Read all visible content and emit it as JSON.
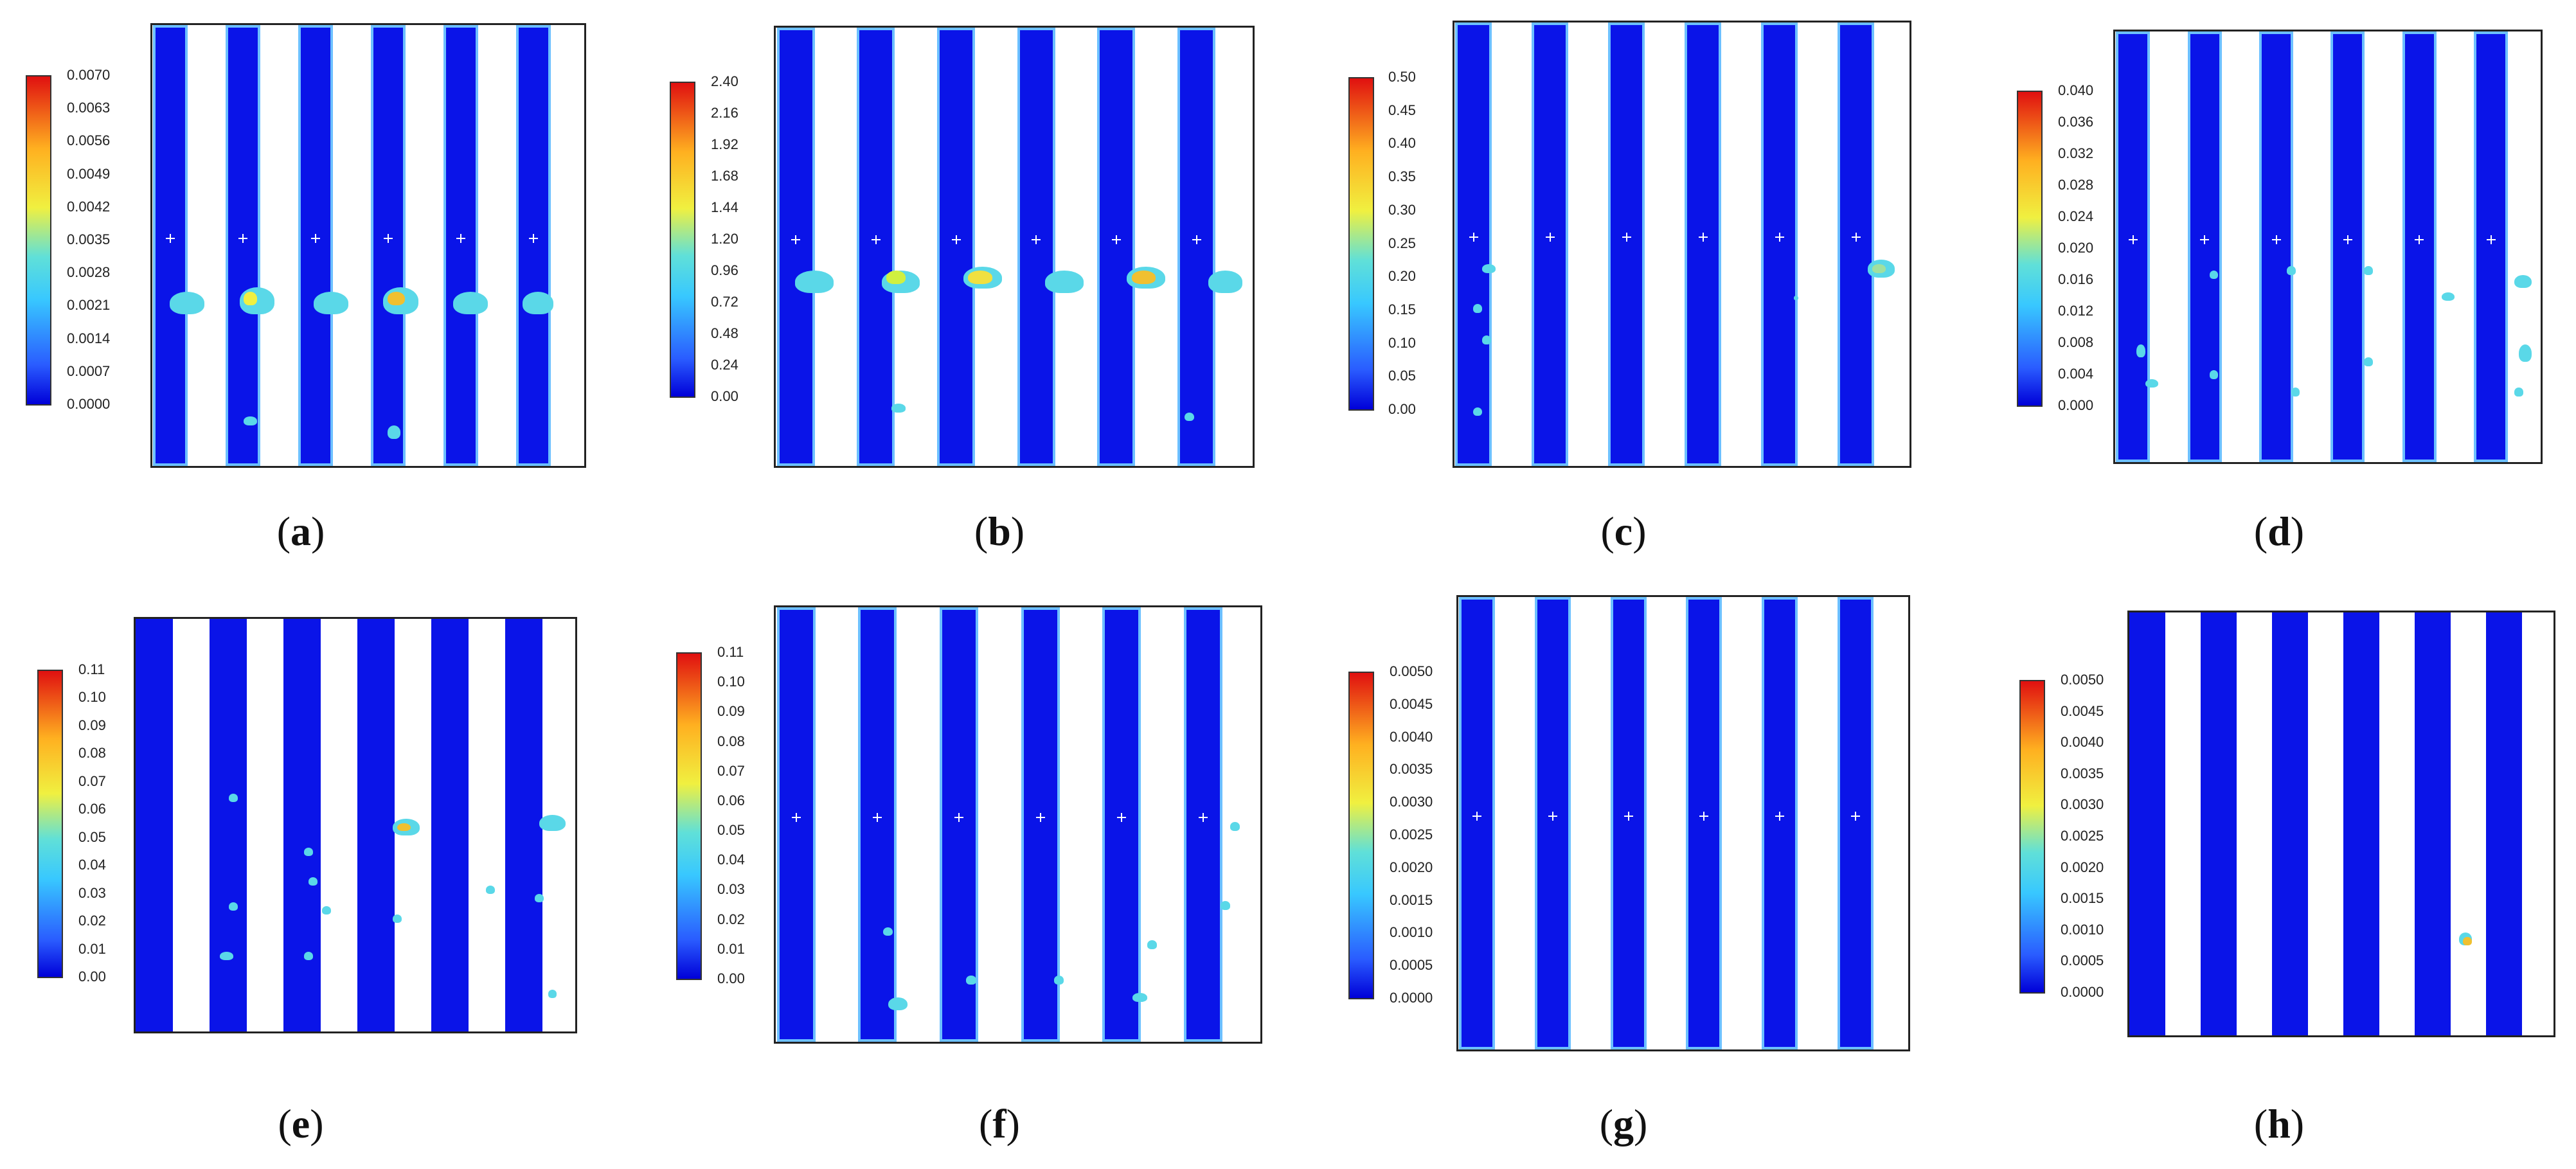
{
  "panels": [
    {
      "id": "a",
      "caption": "a",
      "colorbar_ticks": [
        "0.0070",
        "0.0063",
        "0.0056",
        "0.0049",
        "0.0042",
        "0.0035",
        "0.0028",
        "0.0021",
        "0.0014",
        "0.0007",
        "0.0000"
      ],
      "channel_count": 6,
      "channel_style": "bordered",
      "probe_marks": true
    },
    {
      "id": "b",
      "caption": "b",
      "colorbar_ticks": [
        "2.40",
        "2.16",
        "1.92",
        "1.68",
        "1.44",
        "1.20",
        "0.96",
        "0.72",
        "0.48",
        "0.24",
        "0.00"
      ],
      "channel_count": 6,
      "channel_style": "bordered",
      "probe_marks": true
    },
    {
      "id": "c",
      "caption": "c",
      "colorbar_ticks": [
        "0.50",
        "0.45",
        "0.40",
        "0.35",
        "0.30",
        "0.25",
        "0.20",
        "0.15",
        "0.10",
        "0.05",
        "0.00"
      ],
      "channel_count": 6,
      "channel_style": "bordered",
      "probe_marks": true
    },
    {
      "id": "d",
      "caption": "d",
      "colorbar_ticks": [
        "0.040",
        "0.036",
        "0.032",
        "0.028",
        "0.024",
        "0.020",
        "0.016",
        "0.012",
        "0.008",
        "0.004",
        "0.000"
      ],
      "channel_count": 6,
      "channel_style": "bordered",
      "probe_marks": true
    },
    {
      "id": "e",
      "caption": "e",
      "colorbar_ticks": [
        "0.11",
        "0.10",
        "0.09",
        "0.08",
        "0.07",
        "0.06",
        "0.05",
        "0.04",
        "0.03",
        "0.02",
        "0.01",
        "0.00"
      ],
      "channel_count": 6,
      "channel_style": "plain",
      "probe_marks": false
    },
    {
      "id": "f",
      "caption": "f",
      "colorbar_ticks": [
        "0.11",
        "0.10",
        "0.09",
        "0.08",
        "0.07",
        "0.06",
        "0.05",
        "0.04",
        "0.03",
        "0.02",
        "0.01",
        "0.00"
      ],
      "channel_count": 6,
      "channel_style": "bordered",
      "probe_marks": true
    },
    {
      "id": "g",
      "caption": "g",
      "colorbar_ticks": [
        "0.0050",
        "0.0045",
        "0.0040",
        "0.0035",
        "0.0030",
        "0.0025",
        "0.0020",
        "0.0015",
        "0.0010",
        "0.0005",
        "0.0000"
      ],
      "channel_count": 6,
      "channel_style": "bordered",
      "probe_marks": true
    },
    {
      "id": "h",
      "caption": "h",
      "colorbar_ticks": [
        "0.0050",
        "0.0045",
        "0.0040",
        "0.0035",
        "0.0030",
        "0.0025",
        "0.0020",
        "0.0015",
        "0.0010",
        "0.0005",
        "0.0000"
      ],
      "channel_count": 6,
      "channel_style": "plain",
      "probe_marks": false
    }
  ],
  "colors": {
    "channel": "#0a14e8",
    "channel_border": "#6cc0ff",
    "colormap": [
      "#0000d8",
      "#38c8ff",
      "#f0f040",
      "#e01010"
    ]
  }
}
